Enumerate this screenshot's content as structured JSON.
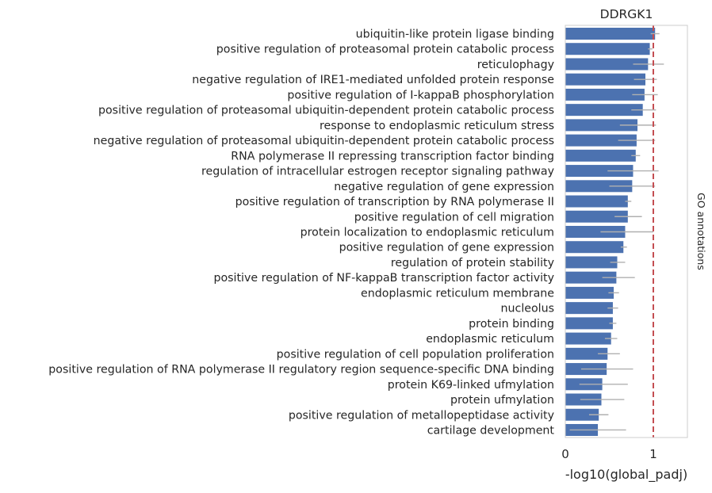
{
  "chart_data": {
    "type": "bar",
    "orientation": "horizontal",
    "title": "DDRGK1",
    "xlabel": "-log10(global_padj)",
    "ylabel": "",
    "side_label": "GO annotations",
    "xlim": [
      0,
      1.4
    ],
    "xticks": [
      0,
      1
    ],
    "reference_line": {
      "x": 1.0,
      "style": "dashed",
      "color": "#c44e52"
    },
    "grid": false,
    "bar_color": "#4c72b0",
    "error_color": "#b0b0b0",
    "categories": [
      "ubiquitin-like protein ligase binding",
      "positive regulation of proteasomal protein catabolic process",
      "reticulophagy",
      "negative regulation of IRE1-mediated unfolded protein response",
      "positive regulation of I-kappaB phosphorylation",
      "positive regulation of proteasomal ubiquitin-dependent protein catabolic process",
      "response to endoplasmic reticulum stress",
      "negative regulation of proteasomal ubiquitin-dependent protein catabolic process",
      "RNA polymerase II repressing transcription factor binding",
      "regulation of intracellular estrogen receptor signaling pathway",
      "negative regulation of gene expression",
      "positive regulation of transcription by RNA polymerase II",
      "positive regulation of cell migration",
      "protein localization to endoplasmic reticulum",
      "positive regulation of gene expression",
      "regulation of protein stability",
      "positive regulation of NF-kappaB transcription factor activity",
      "endoplasmic reticulum membrane",
      "nucleolus",
      "protein binding",
      "endoplasmic reticulum",
      "positive regulation of cell population proliferation",
      "positive regulation of RNA polymerase II regulatory region sequence-specific DNA binding",
      "protein K69-linked ufmylation",
      "protein ufmylation",
      "positive regulation of metallopeptidase activity",
      "cartilage development"
    ],
    "values": [
      1.02,
      0.96,
      0.94,
      0.91,
      0.9,
      0.88,
      0.82,
      0.81,
      0.8,
      0.77,
      0.76,
      0.71,
      0.71,
      0.68,
      0.66,
      0.59,
      0.58,
      0.55,
      0.54,
      0.54,
      0.52,
      0.48,
      0.47,
      0.42,
      0.41,
      0.38,
      0.37
    ],
    "error_low": [
      0.97,
      0.94,
      0.77,
      0.78,
      0.76,
      0.75,
      0.62,
      0.6,
      0.75,
      0.48,
      0.5,
      0.68,
      0.56,
      0.4,
      0.63,
      0.51,
      0.42,
      0.49,
      0.48,
      0.5,
      0.45,
      0.37,
      0.18,
      0.16,
      0.17,
      0.27,
      0.05
    ],
    "error_high": [
      1.07,
      0.99,
      1.12,
      1.04,
      1.05,
      1.03,
      1.03,
      1.02,
      0.85,
      1.06,
      1.02,
      0.75,
      0.87,
      1.0,
      0.7,
      0.68,
      0.79,
      0.61,
      0.6,
      0.58,
      0.59,
      0.62,
      0.77,
      0.71,
      0.67,
      0.49,
      0.69
    ]
  }
}
